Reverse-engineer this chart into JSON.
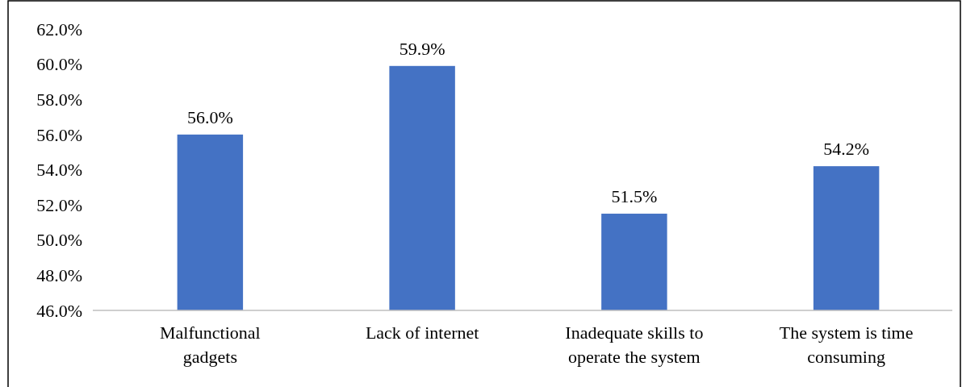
{
  "chart_data": {
    "type": "bar",
    "categories": [
      "Malfunctional gadgets",
      "Lack of internet",
      "Inadequate skills to operate the system",
      "The system is time consuming"
    ],
    "values": [
      56.0,
      59.9,
      51.5,
      54.2
    ],
    "color": "#4472c4",
    "ylim": [
      46,
      62
    ],
    "yticks": [
      {
        "value": 46,
        "label": "46.0%"
      },
      {
        "value": 48,
        "label": "48.0%"
      },
      {
        "value": 50,
        "label": "50.0%"
      },
      {
        "value": 52,
        "label": "52.0%"
      },
      {
        "value": 54,
        "label": "54.0%"
      },
      {
        "value": 56,
        "label": "56.0%"
      },
      {
        "value": 58,
        "label": "58.0%"
      },
      {
        "value": 60,
        "label": "60.0%"
      },
      {
        "value": 62,
        "label": "62.0%"
      }
    ],
    "value_labels": [
      "56.0%",
      "59.9%",
      "51.5%",
      "54.2%"
    ],
    "grid": false
  }
}
